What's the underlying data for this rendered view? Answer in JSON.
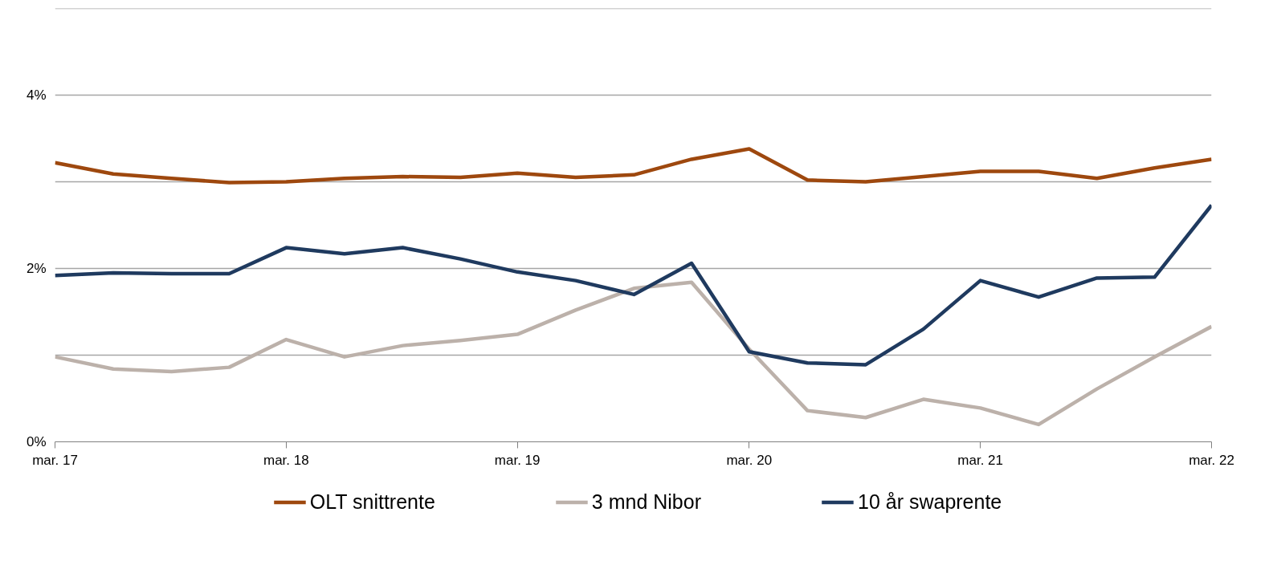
{
  "chart_data": {
    "type": "line",
    "x": [
      "2017-03",
      "2017-06",
      "2017-09",
      "2017-12",
      "2018-03",
      "2018-06",
      "2018-09",
      "2018-12",
      "2019-03",
      "2019-06",
      "2019-09",
      "2019-12",
      "2020-03",
      "2020-06",
      "2020-09",
      "2020-12",
      "2021-03",
      "2021-06",
      "2021-09",
      "2021-12",
      "2022-03"
    ],
    "series": [
      {
        "name": "OLT snittrente",
        "color": "#9e480e",
        "values": [
          3.22,
          3.09,
          3.04,
          2.99,
          3.0,
          3.04,
          3.06,
          3.05,
          3.1,
          3.05,
          3.08,
          3.26,
          3.38,
          3.02,
          3.0,
          3.06,
          3.12,
          3.12,
          3.04,
          3.16,
          3.26
        ]
      },
      {
        "name": "3 mnd Nibor",
        "color": "#bcb1aa",
        "values": [
          0.98,
          0.84,
          0.81,
          0.86,
          1.18,
          0.98,
          1.11,
          1.17,
          1.24,
          1.52,
          1.77,
          1.84,
          1.07,
          0.36,
          0.28,
          0.49,
          0.39,
          0.2,
          0.61,
          0.98,
          1.33
        ]
      },
      {
        "name": "10 år swaprente",
        "color": "#1f3a5f",
        "values": [
          1.92,
          1.95,
          1.94,
          1.94,
          2.24,
          2.17,
          2.24,
          2.11,
          1.96,
          1.86,
          1.7,
          2.06,
          1.04,
          0.91,
          0.89,
          1.3,
          1.86,
          1.67,
          1.89,
          1.9,
          2.73
        ]
      }
    ],
    "xlim": [
      "2017-03",
      "2022-03"
    ],
    "xticks": [
      {
        "value": "2017-03",
        "label": "mar. 17"
      },
      {
        "value": "2018-03",
        "label": "mar. 18"
      },
      {
        "value": "2019-03",
        "label": "mar. 19"
      },
      {
        "value": "2020-03",
        "label": "mar. 20"
      },
      {
        "value": "2021-03",
        "label": "mar. 21"
      },
      {
        "value": "2022-03",
        "label": "mar. 22"
      }
    ],
    "ylim": [
      0,
      5
    ],
    "yticks": [
      {
        "value": 0,
        "label": "0%"
      },
      {
        "value": 1,
        "label": null
      },
      {
        "value": 2,
        "label": "2%"
      },
      {
        "value": 3,
        "label": null
      },
      {
        "value": 4,
        "label": "4%"
      },
      {
        "value": 5,
        "label": null
      }
    ],
    "grid": "y",
    "legend": "bottom",
    "marker": "none",
    "line_style": "solid"
  }
}
